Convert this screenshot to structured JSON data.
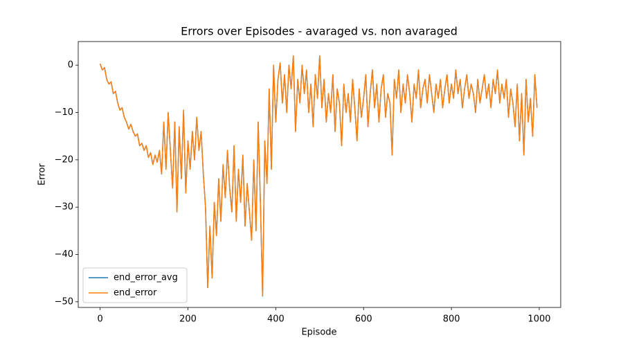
{
  "chart_data": {
    "type": "line",
    "title": "Errors over Episodes - avaraged vs. non avaraged",
    "xlabel": "Episode",
    "ylabel": "Error",
    "x": [
      0,
      5,
      10,
      15,
      20,
      25,
      30,
      35,
      40,
      45,
      50,
      55,
      60,
      65,
      70,
      75,
      80,
      85,
      90,
      95,
      100,
      105,
      110,
      115,
      120,
      125,
      130,
      135,
      140,
      145,
      150,
      155,
      160,
      165,
      170,
      175,
      180,
      185,
      190,
      195,
      200,
      205,
      210,
      215,
      220,
      225,
      230,
      235,
      240,
      245,
      250,
      255,
      260,
      265,
      270,
      275,
      280,
      285,
      290,
      295,
      300,
      305,
      310,
      315,
      320,
      325,
      330,
      335,
      340,
      345,
      350,
      355,
      360,
      365,
      370,
      375,
      380,
      385,
      390,
      395,
      400,
      405,
      410,
      415,
      420,
      425,
      430,
      435,
      440,
      445,
      450,
      455,
      460,
      465,
      470,
      475,
      480,
      485,
      490,
      495,
      500,
      505,
      510,
      515,
      520,
      525,
      530,
      535,
      540,
      545,
      550,
      555,
      560,
      565,
      570,
      575,
      580,
      585,
      590,
      595,
      600,
      605,
      610,
      615,
      620,
      625,
      630,
      635,
      640,
      645,
      650,
      655,
      660,
      665,
      670,
      675,
      680,
      685,
      690,
      695,
      700,
      705,
      710,
      715,
      720,
      725,
      730,
      735,
      740,
      745,
      750,
      755,
      760,
      765,
      770,
      775,
      780,
      785,
      790,
      795,
      800,
      805,
      810,
      815,
      820,
      825,
      830,
      835,
      840,
      845,
      850,
      855,
      860,
      865,
      870,
      875,
      880,
      885,
      890,
      895,
      900,
      905,
      910,
      915,
      920,
      925,
      930,
      935,
      940,
      945,
      950,
      955,
      960,
      965,
      970,
      975,
      980,
      985,
      990,
      995
    ],
    "series": [
      {
        "name": "end_error_avg",
        "color": "#1f77b4",
        "values": [
          0.3,
          -1,
          -0.5,
          -3,
          -4,
          -3.5,
          -6,
          -5.5,
          -8,
          -9.5,
          -9,
          -11,
          -12,
          -13.5,
          -12.5,
          -14,
          -15,
          -14.5,
          -17,
          -16.5,
          -18,
          -17,
          -19.5,
          -18.5,
          -21,
          -19,
          -20.5,
          -18,
          -23,
          -12,
          -22,
          -10,
          -18,
          -26,
          -12,
          -31,
          -13,
          -24,
          -9.5,
          -27,
          -16,
          -22,
          -14,
          -20,
          -11,
          -18,
          -14,
          -23,
          -30,
          -47,
          -34,
          -45,
          -29,
          -36,
          -24,
          -33,
          -21,
          -28,
          -18,
          -26,
          -31,
          -17,
          -33,
          -22,
          -29,
          -19,
          -34,
          -25,
          -31,
          -37,
          -20,
          -35,
          -12,
          -29,
          -48.8,
          -16,
          -25,
          -5,
          -22,
          0,
          -12,
          -3,
          0.5,
          -8,
          -2,
          -10,
          0,
          -5,
          2,
          -14,
          -3,
          -8,
          0,
          -6,
          -1,
          -10,
          -4,
          -13,
          -2,
          -7,
          2,
          -9,
          -3,
          -12,
          -6,
          -10,
          -2,
          -14,
          -5,
          -8,
          -17,
          -4,
          -10,
          -6,
          -12,
          -3,
          -9,
          -16,
          -5,
          -11,
          -7,
          -2,
          -13,
          -6,
          -1,
          -9,
          -4,
          -12,
          -5,
          -2,
          -11,
          -6,
          -8,
          -19,
          -3,
          -7,
          -1,
          -10,
          -4,
          -8,
          -2,
          -6,
          -12,
          -4,
          -7,
          -1,
          -9,
          -5,
          -3,
          -8,
          -2,
          -6,
          -10,
          -4,
          -7,
          -3,
          -9,
          -5,
          -2,
          -8,
          -4,
          -7,
          -1,
          -6,
          -3,
          -9,
          -5,
          -2,
          -7,
          -4,
          -6,
          -10,
          -3,
          -8,
          -5,
          -2,
          -7,
          -4,
          -9,
          -3,
          -6,
          -1,
          -8,
          -4,
          -7,
          -3,
          -11,
          -5,
          -8,
          -13,
          -4,
          -16,
          -6,
          -19,
          -3,
          -12,
          -7,
          -15,
          -2,
          -9
        ]
      },
      {
        "name": "end_error",
        "color": "#ff7f0e",
        "values": [
          0.3,
          -1,
          -0.5,
          -3,
          -4,
          -3.5,
          -6,
          -5.5,
          -8,
          -9.5,
          -9,
          -11,
          -12,
          -13.5,
          -12.5,
          -14,
          -15,
          -14.5,
          -17,
          -16.5,
          -18,
          -17,
          -19.5,
          -18.5,
          -21,
          -19,
          -20.5,
          -18,
          -23,
          -12,
          -22,
          -10,
          -18,
          -26,
          -12,
          -31,
          -13,
          -24,
          -9.5,
          -27,
          -16,
          -22,
          -14,
          -20,
          -11,
          -18,
          -14,
          -23,
          -30,
          -47,
          -34,
          -45,
          -29,
          -36,
          -24,
          -33,
          -21,
          -28,
          -18,
          -26,
          -31,
          -17,
          -33,
          -22,
          -29,
          -19,
          -34,
          -25,
          -31,
          -37,
          -20,
          -35,
          -12,
          -29,
          -48.8,
          -16,
          -25,
          -5,
          -22,
          0,
          -12,
          -3,
          0.5,
          -8,
          -2,
          -10,
          0,
          -5,
          2,
          -14,
          -3,
          -8,
          0,
          -6,
          -1,
          -10,
          -4,
          -13,
          -2,
          -7,
          2,
          -9,
          -3,
          -12,
          -6,
          -10,
          -2,
          -14,
          -5,
          -8,
          -17,
          -4,
          -10,
          -6,
          -12,
          -3,
          -9,
          -16,
          -5,
          -11,
          -7,
          -2,
          -13,
          -6,
          -1,
          -9,
          -4,
          -12,
          -5,
          -2,
          -11,
          -6,
          -8,
          -19,
          -3,
          -7,
          -1,
          -10,
          -4,
          -8,
          -2,
          -6,
          -12,
          -4,
          -7,
          -1,
          -9,
          -5,
          -3,
          -8,
          -2,
          -6,
          -10,
          -4,
          -7,
          -3,
          -9,
          -5,
          -2,
          -8,
          -4,
          -7,
          -1,
          -6,
          -3,
          -9,
          -5,
          -2,
          -7,
          -4,
          -6,
          -10,
          -3,
          -8,
          -5,
          -2,
          -7,
          -4,
          -9,
          -3,
          -6,
          -1,
          -8,
          -4,
          -7,
          -3,
          -11,
          -5,
          -8,
          -13,
          -4,
          -16,
          -6,
          -19,
          -3,
          -12,
          -7,
          -15,
          -2,
          -9
        ]
      }
    ],
    "xlim": [
      -49.9,
      1048.9
    ],
    "ylim": [
      -51.2,
      5.0
    ],
    "xticks": [
      0,
      200,
      400,
      600,
      800,
      1000
    ],
    "yticks": [
      {
        "value": -50,
        "label": "−50"
      },
      {
        "value": -40,
        "label": "−40"
      },
      {
        "value": -30,
        "label": "−30"
      },
      {
        "value": -20,
        "label": "−20"
      },
      {
        "value": -10,
        "label": "−10"
      },
      0
    ],
    "legend": "lower left"
  }
}
